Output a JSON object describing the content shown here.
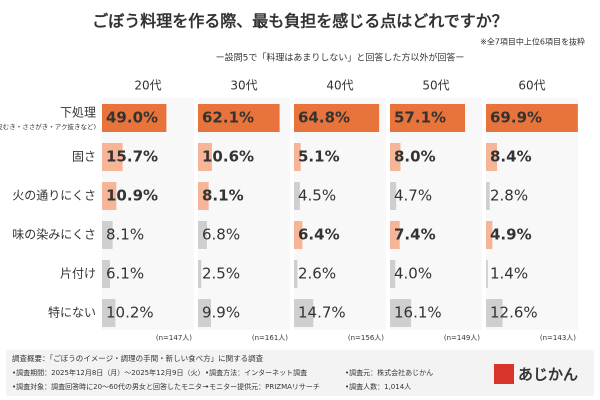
{
  "title": "ごぼう料理を作る際、最も負担を感じる点はどれですか？",
  "note": "※全7項目中上位6項目を抜粋",
  "subtitle": "ー設問5で「料理はあまりしない」と回答した方以外が回答ー",
  "chart_data": [
    {
      "type": "bar",
      "title": "20代",
      "categories": [
        "下処理",
        "固さ",
        "火の通りにくさ",
        "味の染みにくさ",
        "片付け",
        "特にない"
      ],
      "category_note": "(皮むき・ささがき・アク抜きなど)",
      "values": [
        49.0,
        15.7,
        10.9,
        8.1,
        6.1,
        10.2
      ],
      "value_labels": [
        "49.0%",
        "15.7%",
        "10.9%",
        "8.1%",
        "6.1%",
        "10.2%"
      ],
      "colors": [
        "#e8743b",
        "#f7b598",
        "#f7b598",
        "#cfcfcf",
        "#cfcfcf",
        "#cfcfcf"
      ],
      "xlim": [
        0,
        70
      ],
      "sample": "(n=147人)"
    },
    {
      "type": "bar",
      "title": "30代",
      "values": [
        62.1,
        10.6,
        8.1,
        6.8,
        2.5,
        9.9
      ],
      "value_labels": [
        "62.1%",
        "10.6%",
        "8.1%",
        "6.8%",
        "2.5%",
        "9.9%"
      ],
      "colors": [
        "#e8743b",
        "#f7b598",
        "#f7b598",
        "#cfcfcf",
        "#cfcfcf",
        "#cfcfcf"
      ],
      "xlim": [
        0,
        70
      ],
      "sample": "(n=161人)"
    },
    {
      "type": "bar",
      "title": "40代",
      "values": [
        64.8,
        5.1,
        4.5,
        6.4,
        2.6,
        14.7
      ],
      "value_labels": [
        "64.8%",
        "5.1%",
        "4.5%",
        "6.4%",
        "2.6%",
        "14.7%"
      ],
      "colors": [
        "#e8743b",
        "#f7b598",
        "#cfcfcf",
        "#f7b598",
        "#cfcfcf",
        "#cfcfcf"
      ],
      "xlim": [
        0,
        70
      ],
      "sample": "(n=156人)"
    },
    {
      "type": "bar",
      "title": "50代",
      "values": [
        57.1,
        8.0,
        4.7,
        7.4,
        4.0,
        16.1
      ],
      "value_labels": [
        "57.1%",
        "8.0%",
        "4.7%",
        "7.4%",
        "4.0%",
        "16.1%"
      ],
      "colors": [
        "#e8743b",
        "#f7b598",
        "#cfcfcf",
        "#f7b598",
        "#cfcfcf",
        "#cfcfcf"
      ],
      "xlim": [
        0,
        70
      ],
      "sample": "(n=149人)"
    },
    {
      "type": "bar",
      "title": "60代",
      "values": [
        69.9,
        8.4,
        2.8,
        4.9,
        1.4,
        12.6
      ],
      "value_labels": [
        "69.9%",
        "8.4%",
        "2.8%",
        "4.9%",
        "1.4%",
        "12.6%"
      ],
      "colors": [
        "#e8743b",
        "#f7b598",
        "#cfcfcf",
        "#f7b598",
        "#cfcfcf",
        "#cfcfcf"
      ],
      "xlim": [
        0,
        70
      ],
      "sample": "(n=143人)"
    }
  ],
  "footer": {
    "heading": "調査概要：「ごぼうのイメージ・調理の手間・新しい食べ方」に関する調査",
    "items": [
      "•調査期間：2025年12月8日（月）～2025年12月9日（火）",
      "•調査方法：インターネット調査",
      "•調査元：株式会社あじかん",
      "•調査対象：調査回答時に20～60代の男女と回答したモニター",
      "•モニター提供元：PRIZMAリサーチ",
      "•調査人数：1,014人"
    ],
    "logo": "あじかん"
  }
}
